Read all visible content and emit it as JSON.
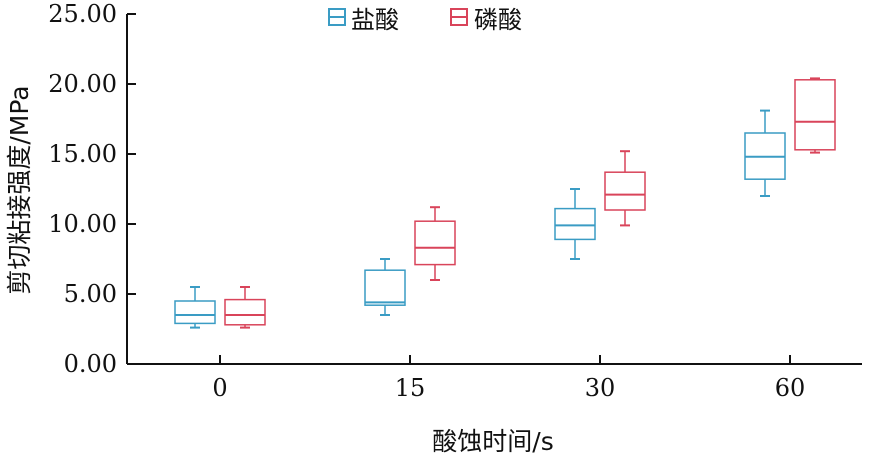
{
  "chart_data": {
    "type": "box",
    "xlabel": "酸蚀时间/s",
    "ylabel": "剪切粘接强度/MPa",
    "categories": [
      "0",
      "15",
      "30",
      "60"
    ],
    "y_ticks": [
      "0.00",
      "5.00",
      "10.00",
      "15.00",
      "20.00",
      "25.00"
    ],
    "ylim": [
      0,
      25
    ],
    "legend_position": "top-center",
    "series": [
      {
        "name": "盐酸",
        "color": "#3a9cc4",
        "boxes": [
          {
            "whisker_low": 2.6,
            "q1": 2.9,
            "median": 3.5,
            "q3": 4.5,
            "whisker_high": 5.5
          },
          {
            "whisker_low": 3.5,
            "q1": 4.2,
            "median": 4.4,
            "q3": 6.7,
            "whisker_high": 7.5
          },
          {
            "whisker_low": 7.5,
            "q1": 8.9,
            "median": 9.9,
            "q3": 11.1,
            "whisker_high": 12.5
          },
          {
            "whisker_low": 12.0,
            "q1": 13.2,
            "median": 14.8,
            "q3": 16.5,
            "whisker_high": 18.1
          }
        ]
      },
      {
        "name": "磷酸",
        "color": "#d9445a",
        "boxes": [
          {
            "whisker_low": 2.6,
            "q1": 2.8,
            "median": 3.5,
            "q3": 4.6,
            "whisker_high": 5.5
          },
          {
            "whisker_low": 6.0,
            "q1": 7.1,
            "median": 8.3,
            "q3": 10.2,
            "whisker_high": 11.2
          },
          {
            "whisker_low": 9.9,
            "q1": 11.0,
            "median": 12.1,
            "q3": 13.7,
            "whisker_high": 15.2
          },
          {
            "whisker_low": 15.1,
            "q1": 15.3,
            "median": 17.3,
            "q3": 20.3,
            "whisker_high": 20.4
          }
        ]
      }
    ]
  }
}
